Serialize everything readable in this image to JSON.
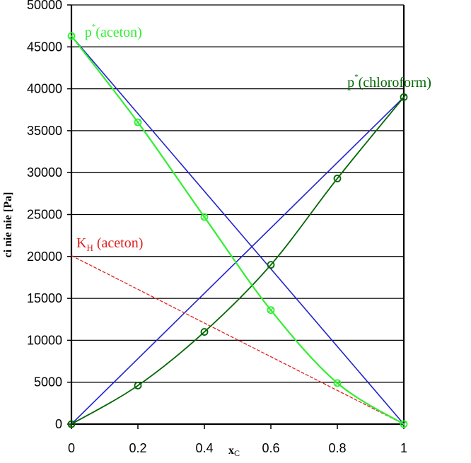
{
  "colors": {
    "aceton": "#33ee33",
    "chloroform": "#006600",
    "ideal": "#2222cc",
    "henry": "#e02020",
    "grid": "#000000"
  },
  "chart_data": {
    "type": "line",
    "xlabel_main": "x",
    "xlabel_sub": "C",
    "ylabel": "ci  nie nie [Pa]",
    "xlim": [
      0,
      1
    ],
    "ylim": [
      0,
      50000
    ],
    "x_ticks": [
      "0",
      "0.2",
      "0.4",
      "0.6",
      "0.8",
      "1"
    ],
    "y_ticks": [
      "0",
      "5000",
      "10000",
      "15000",
      "20000",
      "25000",
      "30000",
      "35000",
      "40000",
      "45000",
      "50000"
    ],
    "grid": "horizontal",
    "series": [
      {
        "key": "aceton",
        "x": [
          0,
          0.2,
          0.4,
          0.6,
          0.8,
          1
        ],
        "y": [
          46300,
          36000,
          24700,
          13600,
          4900,
          0
        ],
        "markers": true,
        "style": "solid"
      },
      {
        "key": "chloroform",
        "x": [
          0,
          0.2,
          0.4,
          0.6,
          0.8,
          1
        ],
        "y": [
          0,
          4600,
          11000,
          19000,
          29300,
          39000
        ],
        "markers": true,
        "style": "solid"
      },
      {
        "key": "ideal-aceton",
        "x": [
          0,
          1
        ],
        "y": [
          46300,
          0
        ],
        "markers": false,
        "style": "solid"
      },
      {
        "key": "ideal-chloroform",
        "x": [
          0,
          1
        ],
        "y": [
          0,
          39000
        ],
        "markers": false,
        "style": "solid"
      },
      {
        "key": "henry-aceton",
        "x": [
          0,
          1
        ],
        "y": [
          20100,
          0
        ],
        "markers": false,
        "style": "dashed"
      }
    ],
    "annotations": [
      {
        "key": "p-aceton",
        "main": "p",
        "sup": "*",
        "rest": "(aceton)",
        "anchor_x": 0.04,
        "anchor_y": 46200
      },
      {
        "key": "p-chloroform",
        "main": "p",
        "sup": "*",
        "rest": "(chloroform)",
        "anchor_x": 0.83,
        "anchor_y": 40200
      },
      {
        "key": "kh-aceton",
        "main": "K",
        "sub": "H",
        "rest": " (aceton)",
        "anchor_x": 0.015,
        "anchor_y": 21100
      }
    ]
  }
}
